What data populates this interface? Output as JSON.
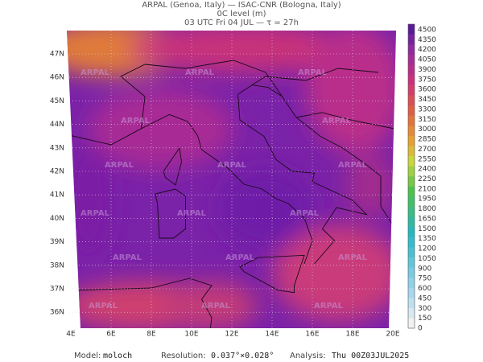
{
  "header": {
    "line1": "ARPAL (Genoa, Italy)  —  ISAC-CNR (Bologna, Italy)",
    "line2": "0C level (m)",
    "line3": "03 UTC Fri 04 JUL  —  τ = 27h"
  },
  "map": {
    "watermark": "ARPAL",
    "lat_labels": [
      "47N",
      "46N",
      "45N",
      "44N",
      "43N",
      "42N",
      "41N",
      "40N",
      "39N",
      "38N",
      "37N",
      "36N"
    ],
    "lon_labels": [
      "4E",
      "6E",
      "8E",
      "10E",
      "12E",
      "14E",
      "16E",
      "18E",
      "20E"
    ]
  },
  "colorbar": {
    "levels": [
      0,
      150,
      300,
      450,
      600,
      750,
      900,
      1050,
      1200,
      1350,
      1500,
      1650,
      1800,
      1950,
      2100,
      2250,
      2400,
      2550,
      2700,
      2850,
      3000,
      3150,
      3300,
      3450,
      3600,
      3750,
      3900,
      4050,
      4200,
      4350,
      4500
    ]
  },
  "footer": {
    "model_label": "Model:",
    "model": "moloch",
    "resolution_label": "Resolution:",
    "resolution": "0.037°×0.028°",
    "analysis_label": "Analysis:",
    "analysis": "Thu 00Z03JUL2025"
  }
}
